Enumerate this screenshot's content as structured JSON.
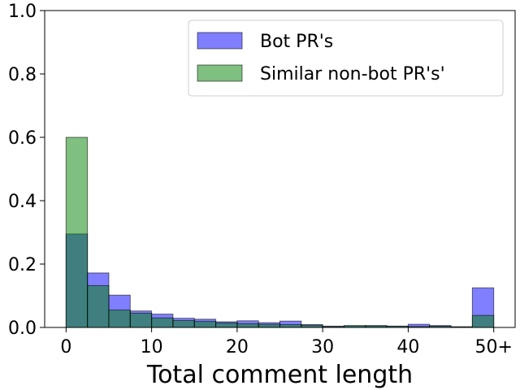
{
  "chart_data": {
    "type": "bar",
    "xlabel": "Total comment length",
    "ylabel": "",
    "ylim": [
      0,
      1.0
    ],
    "xlim": [
      -2.5,
      52.5
    ],
    "bin_width": 2.5,
    "bin_starts": [
      0,
      2.5,
      5,
      7.5,
      10,
      12.5,
      15,
      17.5,
      20,
      22.5,
      25,
      27.5,
      30,
      32.5,
      35,
      37.5,
      40,
      42.5,
      45,
      47.5
    ],
    "x_ticks": [
      0,
      10,
      20,
      30,
      40,
      50
    ],
    "x_tick_labels": [
      "0",
      "10",
      "20",
      "30",
      "40",
      "50+"
    ],
    "y_ticks": [
      0.0,
      0.2,
      0.4,
      0.6,
      0.8,
      1.0
    ],
    "y_tick_labels": [
      "0.0",
      "0.2",
      "0.4",
      "0.6",
      "0.8",
      "1.0"
    ],
    "legend_position": "top-right",
    "grid": false,
    "series": [
      {
        "name": "Bot PR's",
        "color": "#0000ff",
        "opacity": 0.5,
        "values": [
          0.295,
          0.172,
          0.102,
          0.052,
          0.042,
          0.029,
          0.026,
          0.018,
          0.021,
          0.015,
          0.02,
          0.009,
          0.004,
          0.005,
          0.006,
          0.004,
          0.01,
          0.006,
          0.002,
          0.125
        ]
      },
      {
        "name": "Similar non-bot PR's'",
        "color": "#008000",
        "opacity": 0.5,
        "values": [
          0.6,
          0.132,
          0.055,
          0.045,
          0.03,
          0.022,
          0.019,
          0.014,
          0.012,
          0.01,
          0.009,
          0.007,
          0.003,
          0.006,
          0.005,
          0.004,
          0.003,
          0.004,
          0.002,
          0.038
        ]
      }
    ]
  }
}
